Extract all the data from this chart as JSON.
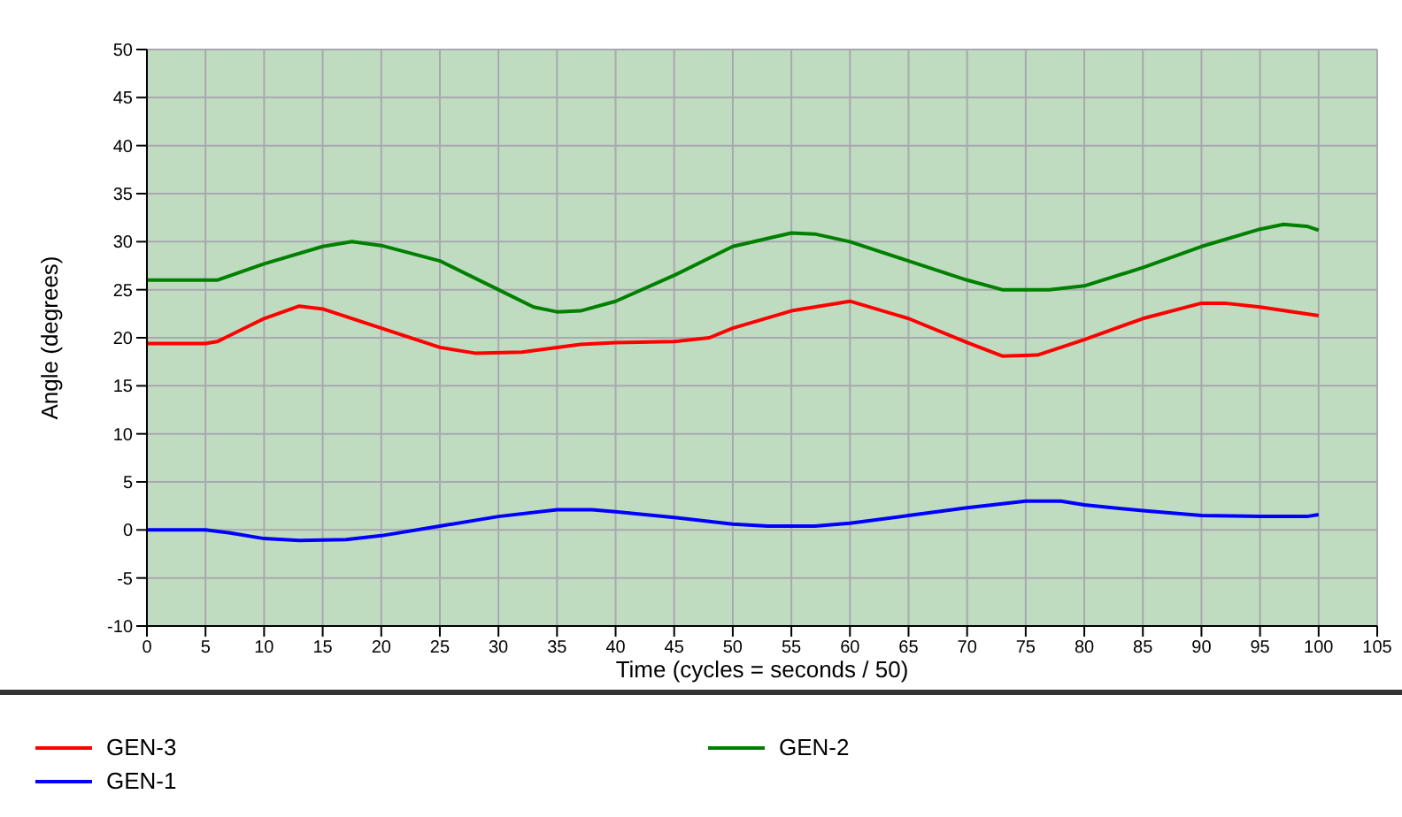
{
  "chart_data": {
    "type": "line",
    "xlabel": "Time (cycles = seconds / 50)",
    "ylabel": "Angle (degrees)",
    "xlim": [
      0,
      105
    ],
    "xticks": [
      0,
      5,
      10,
      15,
      20,
      25,
      30,
      35,
      40,
      45,
      50,
      55,
      60,
      65,
      70,
      75,
      80,
      85,
      90,
      95,
      100,
      105
    ],
    "ylim": [
      -10,
      50
    ],
    "yticks": [
      -10,
      -5,
      0,
      5,
      10,
      15,
      20,
      25,
      30,
      35,
      40,
      45,
      50
    ],
    "grid": true,
    "legend": "bottom",
    "marker": "none",
    "line_style": "solid",
    "series": [
      {
        "name": "GEN-3",
        "color": "#ff0000",
        "x": [
          0,
          5,
          6,
          10,
          13,
          15,
          20,
          25,
          28,
          32,
          37,
          40,
          45,
          48,
          50,
          55,
          60,
          65,
          70,
          73,
          76,
          80,
          85,
          90,
          92,
          95,
          100
        ],
        "values": [
          19.4,
          19.4,
          19.6,
          22,
          23.3,
          23,
          21,
          19,
          18.4,
          18.5,
          19.3,
          19.5,
          19.6,
          20,
          21,
          22.8,
          23.8,
          22,
          19.5,
          18.1,
          18.2,
          19.8,
          22,
          23.6,
          23.6,
          23.2,
          22.3
        ]
      },
      {
        "name": "GEN-2",
        "color": "#008000",
        "x": [
          0,
          6,
          10,
          15,
          17.5,
          20,
          25,
          30,
          33,
          35,
          37,
          40,
          45,
          50,
          55,
          57,
          60,
          65,
          70,
          73,
          77,
          80,
          85,
          90,
          95,
          97,
          99,
          100
        ],
        "values": [
          26,
          26,
          27.7,
          29.5,
          30,
          29.6,
          28,
          25,
          23.2,
          22.7,
          22.8,
          23.8,
          26.5,
          29.5,
          30.9,
          30.8,
          30,
          28,
          26,
          25,
          25,
          25.4,
          27.3,
          29.5,
          31.3,
          31.8,
          31.6,
          31.2
        ]
      },
      {
        "name": "GEN-1",
        "color": "#0000ff",
        "x": [
          0,
          5,
          7,
          10,
          13,
          17,
          20,
          25,
          30,
          35,
          38,
          40,
          45,
          50,
          53,
          57,
          60,
          65,
          70,
          75,
          78,
          80,
          85,
          90,
          95,
          99,
          100
        ],
        "values": [
          0,
          0,
          -0.3,
          -0.9,
          -1.1,
          -1,
          -0.6,
          0.4,
          1.4,
          2.1,
          2.1,
          1.9,
          1.3,
          0.6,
          0.4,
          0.4,
          0.7,
          1.5,
          2.3,
          3,
          3,
          2.6,
          2,
          1.5,
          1.4,
          1.4,
          1.6
        ]
      }
    ]
  }
}
